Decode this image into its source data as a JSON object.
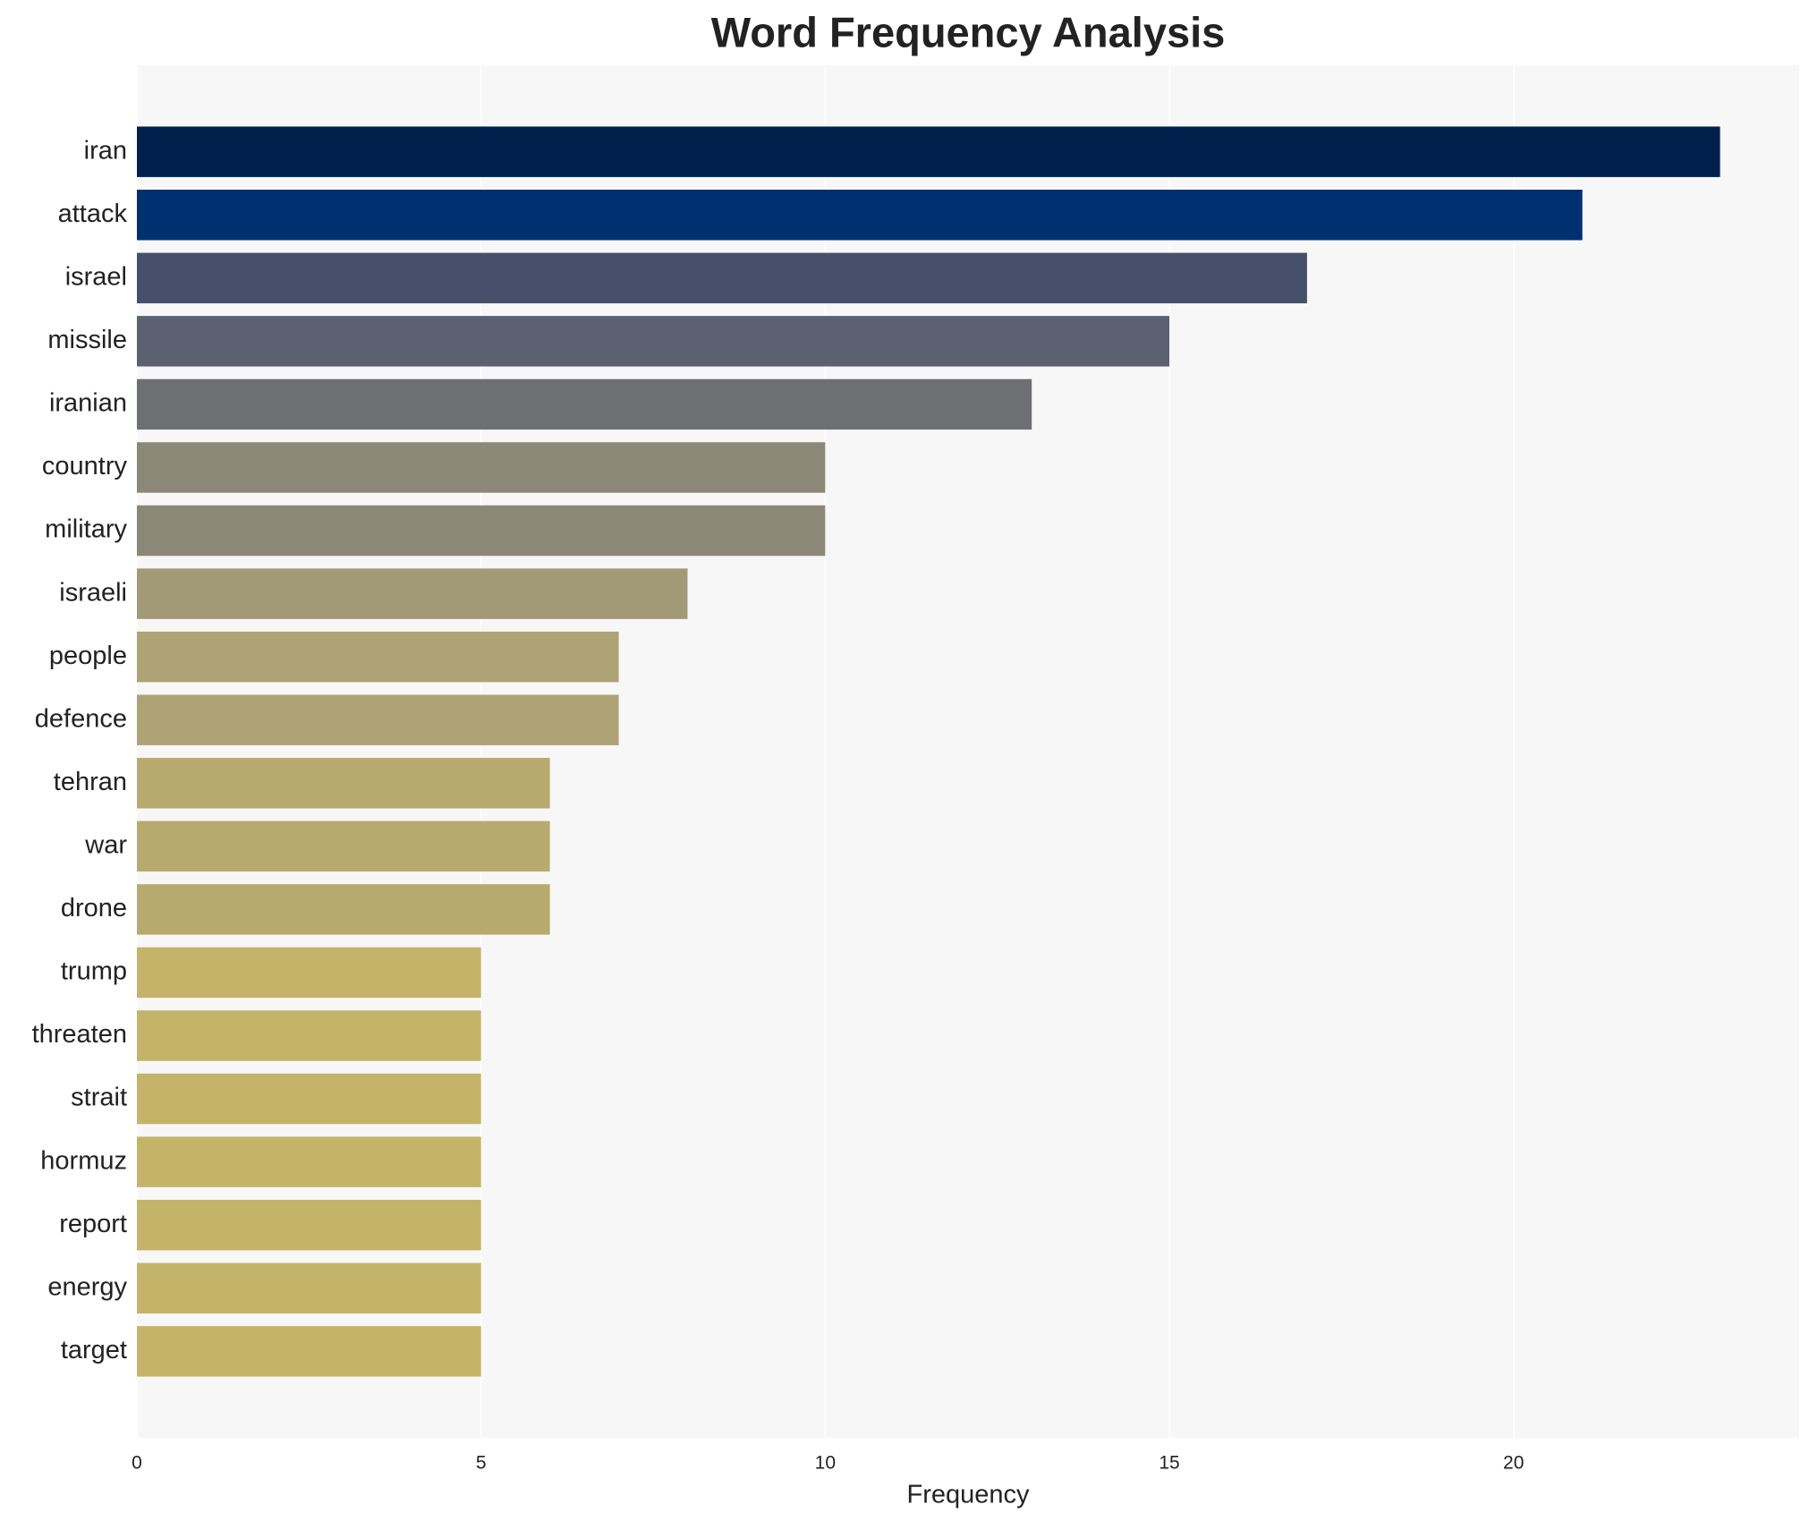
{
  "chart_data": {
    "type": "bar",
    "orientation": "horizontal",
    "title": "Word Frequency Analysis",
    "x_label": "Frequency",
    "categories": [
      "iran",
      "attack",
      "israel",
      "missile",
      "iranian",
      "country",
      "military",
      "israeli",
      "people",
      "defence",
      "tehran",
      "war",
      "drone",
      "trump",
      "threaten",
      "strait",
      "hormuz",
      "report",
      "energy",
      "target"
    ],
    "values": [
      23,
      21,
      17,
      15,
      13,
      10,
      10,
      8,
      7,
      7,
      6,
      6,
      6,
      5,
      5,
      5,
      5,
      5,
      5,
      5
    ],
    "colors": [
      "#00204c",
      "#00306f",
      "#46506b",
      "#5b6170",
      "#6e6f73",
      "#8b8877",
      "#8b8877",
      "#a29a77",
      "#aea374",
      "#aea374",
      "#b8aa6f",
      "#b8aa6f",
      "#b8aa6f",
      "#c4b46a",
      "#c4b46a",
      "#c4b46a",
      "#c4b46a",
      "#c4b46a",
      "#c4b46a",
      "#c4b46a"
    ],
    "xlim": [
      0,
      24.15
    ],
    "xticks": [
      0,
      5,
      10,
      15,
      20
    ],
    "grid": true
  }
}
